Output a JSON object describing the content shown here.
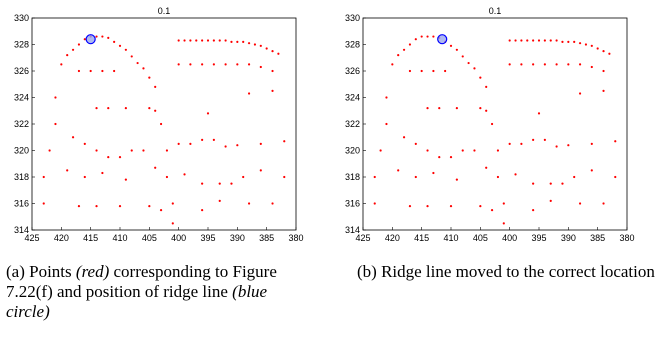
{
  "panel_a": {
    "caption": {
      "label": "(a)",
      "parts": [
        "Points",
        "(red)",
        "corresponding to Figure 7.22(f) and position of ridge line",
        "(blue circle)"
      ]
    }
  },
  "panel_b": {
    "caption": {
      "label": "(b)",
      "text": "Ridge line moved to the correct location"
    }
  },
  "chart_data": [
    {
      "type": "scatter",
      "title": "0.1",
      "xlabel": "",
      "ylabel": "",
      "xlim": [
        425,
        380
      ],
      "ylim": [
        314,
        330
      ],
      "x_reversed": true,
      "xticks": [
        "425",
        "420",
        "415",
        "410",
        "405",
        "400",
        "395",
        "390",
        "385",
        "380"
      ],
      "yticks": [
        "314",
        "316",
        "318",
        "320",
        "322",
        "324",
        "326",
        "328",
        "330"
      ],
      "series": [
        {
          "color": "#ff0000",
          "points": [
            [
              423,
              316
            ],
            [
              423,
              318
            ],
            [
              422,
              320
            ],
            [
              421,
              322
            ],
            [
              421,
              324
            ],
            [
              420,
              326.5
            ],
            [
              419,
              327.2
            ],
            [
              418,
              327.6
            ],
            [
              417,
              328
            ],
            [
              416,
              328.4
            ],
            [
              415,
              328.6
            ],
            [
              414,
              328.6
            ],
            [
              413,
              328.6
            ],
            [
              412,
              328.5
            ],
            [
              411,
              328.2
            ],
            [
              410,
              327.9
            ],
            [
              409,
              327.6
            ],
            [
              408,
              327.1
            ],
            [
              407,
              326.6
            ],
            [
              406,
              326.2
            ],
            [
              405,
              325.5
            ],
            [
              404,
              324.8
            ],
            [
              404,
              323
            ],
            [
              403,
              322
            ],
            [
              402,
              320
            ],
            [
              402,
              318
            ],
            [
              401,
              316
            ],
            [
              401,
              314.5
            ],
            [
              400,
              328.3
            ],
            [
              399,
              328.3
            ],
            [
              398,
              328.3
            ],
            [
              397,
              328.3
            ],
            [
              396,
              328.3
            ],
            [
              395,
              328.3
            ],
            [
              394,
              328.3
            ],
            [
              393,
              328.3
            ],
            [
              392,
              328.3
            ],
            [
              391,
              328.2
            ],
            [
              390,
              328.2
            ],
            [
              389,
              328.2
            ],
            [
              388,
              328.1
            ],
            [
              387,
              328
            ],
            [
              386,
              327.9
            ],
            [
              385,
              327.7
            ],
            [
              384,
              327.5
            ],
            [
              383,
              327.3
            ],
            [
              400,
              326.5
            ],
            [
              398,
              326.5
            ],
            [
              396,
              326.5
            ],
            [
              394,
              326.5
            ],
            [
              392,
              326.5
            ],
            [
              390,
              326.5
            ],
            [
              388,
              326.5
            ],
            [
              386,
              326.3
            ],
            [
              384,
              326
            ],
            [
              413,
              326
            ],
            [
              415,
              326
            ],
            [
              417,
              326
            ],
            [
              411,
              326
            ],
            [
              414,
              323.2
            ],
            [
              412,
              323.2
            ],
            [
              409,
              323.2
            ],
            [
              405,
              323.2
            ],
            [
              395,
              322.8
            ],
            [
              388,
              324.3
            ],
            [
              384,
              324.5
            ],
            [
              418,
              321
            ],
            [
              416,
              320.5
            ],
            [
              414,
              320
            ],
            [
              412,
              319.5
            ],
            [
              410,
              319.5
            ],
            [
              408,
              320
            ],
            [
              406,
              320
            ],
            [
              400,
              320.5
            ],
            [
              398,
              320.5
            ],
            [
              396,
              320.8
            ],
            [
              394,
              320.8
            ],
            [
              392,
              320.3
            ],
            [
              390,
              320.4
            ],
            [
              386,
              320.5
            ],
            [
              382,
              320.7
            ],
            [
              419,
              318.5
            ],
            [
              416,
              318
            ],
            [
              413,
              318.3
            ],
            [
              409,
              317.8
            ],
            [
              404,
              318.7
            ],
            [
              399,
              318.2
            ],
            [
              396,
              317.5
            ],
            [
              393,
              317.5
            ],
            [
              391,
              317.5
            ],
            [
              389,
              318
            ],
            [
              386,
              318.5
            ],
            [
              382,
              318
            ],
            [
              417,
              315.8
            ],
            [
              414,
              315.8
            ],
            [
              410,
              315.8
            ],
            [
              405,
              315.8
            ],
            [
              403,
              315.5
            ],
            [
              396,
              315.5
            ],
            [
              393,
              316.2
            ],
            [
              388,
              316
            ],
            [
              384,
              316
            ]
          ]
        },
        {
          "color": "#0000ff",
          "points": [
            [
              415,
              328.4
            ]
          ]
        }
      ]
    },
    {
      "type": "scatter",
      "title": "0.1",
      "xlabel": "",
      "ylabel": "",
      "xlim": [
        425,
        380
      ],
      "ylim": [
        314,
        330
      ],
      "x_reversed": true,
      "xticks": [
        "425",
        "420",
        "415",
        "410",
        "405",
        "400",
        "395",
        "390",
        "385",
        "380"
      ],
      "yticks": [
        "314",
        "316",
        "318",
        "320",
        "322",
        "324",
        "326",
        "328",
        "330"
      ],
      "series": [
        {
          "color": "#ff0000",
          "points": [
            [
              423,
              316
            ],
            [
              423,
              318
            ],
            [
              422,
              320
            ],
            [
              421,
              322
            ],
            [
              421,
              324
            ],
            [
              420,
              326.5
            ],
            [
              419,
              327.2
            ],
            [
              418,
              327.6
            ],
            [
              417,
              328
            ],
            [
              416,
              328.4
            ],
            [
              415,
              328.6
            ],
            [
              414,
              328.6
            ],
            [
              413,
              328.6
            ],
            [
              412,
              328.5
            ],
            [
              411,
              328.2
            ],
            [
              410,
              327.9
            ],
            [
              409,
              327.6
            ],
            [
              408,
              327.1
            ],
            [
              407,
              326.6
            ],
            [
              406,
              326.2
            ],
            [
              405,
              325.5
            ],
            [
              404,
              324.8
            ],
            [
              404,
              323
            ],
            [
              403,
              322
            ],
            [
              402,
              320
            ],
            [
              402,
              318
            ],
            [
              401,
              316
            ],
            [
              401,
              314.5
            ],
            [
              400,
              328.3
            ],
            [
              399,
              328.3
            ],
            [
              398,
              328.3
            ],
            [
              397,
              328.3
            ],
            [
              396,
              328.3
            ],
            [
              395,
              328.3
            ],
            [
              394,
              328.3
            ],
            [
              393,
              328.3
            ],
            [
              392,
              328.3
            ],
            [
              391,
              328.2
            ],
            [
              390,
              328.2
            ],
            [
              389,
              328.2
            ],
            [
              388,
              328.1
            ],
            [
              387,
              328
            ],
            [
              386,
              327.9
            ],
            [
              385,
              327.7
            ],
            [
              384,
              327.5
            ],
            [
              383,
              327.3
            ],
            [
              400,
              326.5
            ],
            [
              398,
              326.5
            ],
            [
              396,
              326.5
            ],
            [
              394,
              326.5
            ],
            [
              392,
              326.5
            ],
            [
              390,
              326.5
            ],
            [
              388,
              326.5
            ],
            [
              386,
              326.3
            ],
            [
              384,
              326
            ],
            [
              413,
              326
            ],
            [
              415,
              326
            ],
            [
              417,
              326
            ],
            [
              411,
              326
            ],
            [
              414,
              323.2
            ],
            [
              412,
              323.2
            ],
            [
              409,
              323.2
            ],
            [
              405,
              323.2
            ],
            [
              395,
              322.8
            ],
            [
              388,
              324.3
            ],
            [
              384,
              324.5
            ],
            [
              418,
              321
            ],
            [
              416,
              320.5
            ],
            [
              414,
              320
            ],
            [
              412,
              319.5
            ],
            [
              410,
              319.5
            ],
            [
              408,
              320
            ],
            [
              406,
              320
            ],
            [
              400,
              320.5
            ],
            [
              398,
              320.5
            ],
            [
              396,
              320.8
            ],
            [
              394,
              320.8
            ],
            [
              392,
              320.3
            ],
            [
              390,
              320.4
            ],
            [
              386,
              320.5
            ],
            [
              382,
              320.7
            ],
            [
              419,
              318.5
            ],
            [
              416,
              318
            ],
            [
              413,
              318.3
            ],
            [
              409,
              317.8
            ],
            [
              404,
              318.7
            ],
            [
              399,
              318.2
            ],
            [
              396,
              317.5
            ],
            [
              393,
              317.5
            ],
            [
              391,
              317.5
            ],
            [
              389,
              318
            ],
            [
              386,
              318.5
            ],
            [
              382,
              318
            ],
            [
              417,
              315.8
            ],
            [
              414,
              315.8
            ],
            [
              410,
              315.8
            ],
            [
              405,
              315.8
            ],
            [
              403,
              315.5
            ],
            [
              396,
              315.5
            ],
            [
              393,
              316.2
            ],
            [
              388,
              316
            ],
            [
              384,
              316
            ]
          ]
        },
        {
          "color": "#0000ff",
          "points": [
            [
              411.5,
              328.4
            ]
          ]
        }
      ]
    }
  ]
}
